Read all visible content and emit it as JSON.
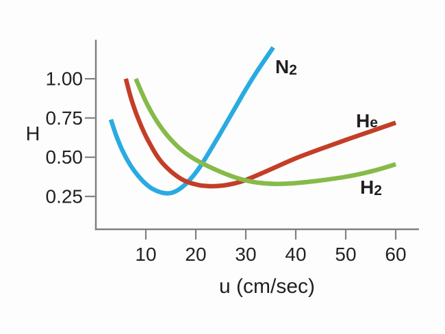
{
  "figure": {
    "background_color": "#fdfdfd",
    "axis_color": "#808080",
    "text_color": "#231f20"
  },
  "chart_data": {
    "type": "line",
    "title": "",
    "xlabel": "u (cm/sec)",
    "ylabel": "H",
    "xlim": [
      0,
      65
    ],
    "ylim": [
      0.04,
      1.24
    ],
    "x_ticks": [
      10,
      20,
      30,
      40,
      50,
      60
    ],
    "y_ticks": [
      0.25,
      0.5,
      0.75,
      1.0
    ],
    "y_tick_labels": [
      "0.25",
      "0.50",
      "0.75",
      "1.00"
    ],
    "grid": false,
    "legend_position": "inline-curve-labels",
    "series": [
      {
        "name": "N2",
        "label_main": "N",
        "label_sub": "2",
        "color": "#29abe2",
        "minimum": {
          "u": 14,
          "H": 0.27
        },
        "points": [
          [
            3,
            0.74
          ],
          [
            4,
            0.645
          ],
          [
            5,
            0.565
          ],
          [
            6,
            0.5
          ],
          [
            7,
            0.445
          ],
          [
            8,
            0.4
          ],
          [
            9,
            0.362
          ],
          [
            10,
            0.33
          ],
          [
            11,
            0.305
          ],
          [
            12,
            0.288
          ],
          [
            13,
            0.276
          ],
          [
            14,
            0.27
          ],
          [
            15,
            0.272
          ],
          [
            16,
            0.283
          ],
          [
            17,
            0.303
          ],
          [
            18,
            0.33
          ],
          [
            19,
            0.363
          ],
          [
            20,
            0.402
          ],
          [
            21,
            0.447
          ],
          [
            22,
            0.497
          ],
          [
            24,
            0.603
          ],
          [
            26,
            0.712
          ],
          [
            28,
            0.822
          ],
          [
            30,
            0.932
          ],
          [
            32,
            1.035
          ],
          [
            34,
            1.13
          ],
          [
            35.5,
            1.2
          ]
        ]
      },
      {
        "name": "He",
        "label_main": "H",
        "label_sub": "e",
        "color": "#c43e27",
        "minimum": {
          "u": 23,
          "H": 0.315
        },
        "points": [
          [
            6,
            1.0
          ],
          [
            7,
            0.88
          ],
          [
            8,
            0.785
          ],
          [
            9,
            0.705
          ],
          [
            10,
            0.635
          ],
          [
            11,
            0.575
          ],
          [
            12,
            0.52
          ],
          [
            13,
            0.475
          ],
          [
            14,
            0.44
          ],
          [
            15,
            0.41
          ],
          [
            16,
            0.385
          ],
          [
            17,
            0.363
          ],
          [
            18,
            0.347
          ],
          [
            19,
            0.335
          ],
          [
            20,
            0.327
          ],
          [
            21,
            0.32
          ],
          [
            22,
            0.317
          ],
          [
            23,
            0.315
          ],
          [
            24,
            0.316
          ],
          [
            25,
            0.318
          ],
          [
            26,
            0.322
          ],
          [
            27,
            0.328
          ],
          [
            28,
            0.335
          ],
          [
            30,
            0.355
          ],
          [
            33,
            0.395
          ],
          [
            36,
            0.437
          ],
          [
            40,
            0.493
          ],
          [
            45,
            0.553
          ],
          [
            50,
            0.61
          ],
          [
            55,
            0.665
          ],
          [
            60,
            0.72
          ]
        ]
      },
      {
        "name": "H2",
        "label_main": "H",
        "label_sub": "2",
        "color": "#86ba49",
        "minimum": {
          "u": 36,
          "H": 0.33
        },
        "points": [
          [
            8,
            1.0
          ],
          [
            10,
            0.855
          ],
          [
            12,
            0.74
          ],
          [
            14,
            0.65
          ],
          [
            16,
            0.58
          ],
          [
            18,
            0.525
          ],
          [
            20,
            0.483
          ],
          [
            22,
            0.45
          ],
          [
            24,
            0.42
          ],
          [
            26,
            0.393
          ],
          [
            28,
            0.37
          ],
          [
            30,
            0.352
          ],
          [
            32,
            0.34
          ],
          [
            34,
            0.333
          ],
          [
            36,
            0.33
          ],
          [
            38,
            0.331
          ],
          [
            40,
            0.335
          ],
          [
            44,
            0.348
          ],
          [
            48,
            0.365
          ],
          [
            52,
            0.387
          ],
          [
            56,
            0.417
          ],
          [
            60,
            0.455
          ]
        ]
      }
    ]
  }
}
